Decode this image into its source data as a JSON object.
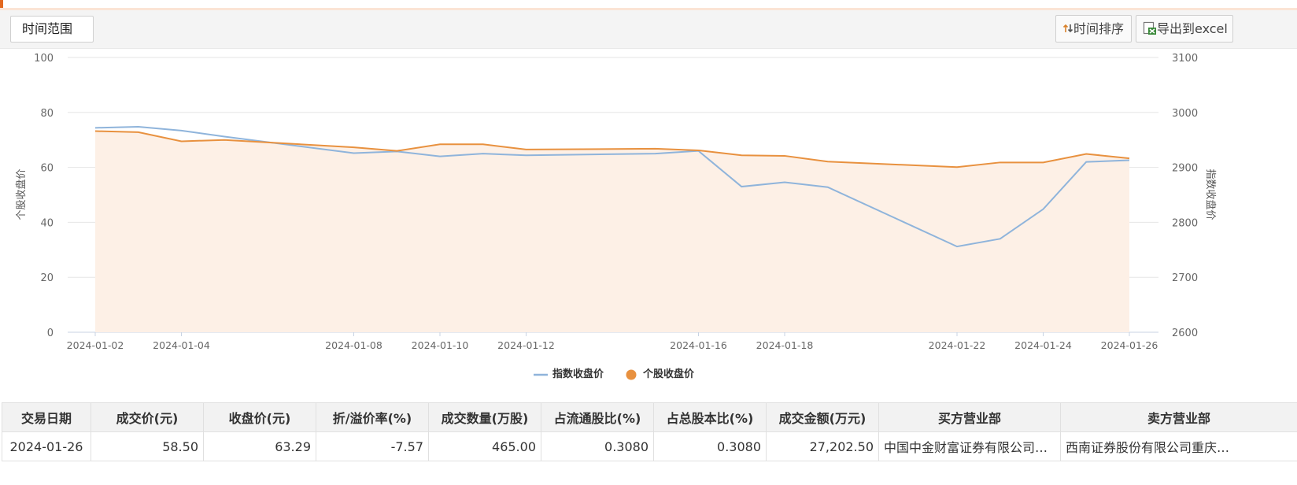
{
  "toolbar": {
    "range_label": "时间范围",
    "sort_label": "时间排序",
    "export_label": "导出到excel"
  },
  "chart_data": {
    "type": "line",
    "x": [
      "2024-01-02",
      "2024-01-03",
      "2024-01-04",
      "2024-01-05",
      "2024-01-08",
      "2024-01-09",
      "2024-01-10",
      "2024-01-11",
      "2024-01-12",
      "2024-01-15",
      "2024-01-16",
      "2024-01-17",
      "2024-01-18",
      "2024-01-19",
      "2024-01-22",
      "2024-01-23",
      "2024-01-24",
      "2024-01-25",
      "2024-01-26"
    ],
    "x_tick_labels": [
      "2024-01-02",
      "2024-01-04",
      "2024-01-08",
      "2024-01-10",
      "2024-01-12",
      "2024-01-16",
      "2024-01-18",
      "2024-01-22",
      "2024-01-24",
      "2024-01-26"
    ],
    "series": [
      {
        "name": "指数收盘价",
        "axis": "right",
        "color": "#8fb4db",
        "values": [
          2972,
          2974,
          2967,
          2956,
          2926,
          2929,
          2920,
          2925,
          2922,
          2925,
          2930,
          2865,
          2873,
          2864,
          2756,
          2770,
          2824,
          2910,
          2913
        ]
      },
      {
        "name": "个股收盘价",
        "axis": "left",
        "color": "#e8913f",
        "values": [
          73.2,
          72.8,
          69.5,
          70.0,
          67.3,
          66.0,
          68.4,
          68.4,
          66.5,
          66.8,
          66.2,
          64.4,
          64.2,
          62.1,
          60.1,
          61.8,
          61.8,
          64.9,
          63.3
        ]
      }
    ],
    "ylabel": "个股收盘价",
    "y2label": "指数收盘价",
    "ylim": [
      0,
      100
    ],
    "y2lim": [
      2600,
      3100
    ],
    "y_ticks": [
      "0",
      "20",
      "40",
      "60",
      "80",
      "100"
    ],
    "y2_ticks": [
      "2600",
      "2700",
      "2800",
      "2900",
      "3000",
      "3100"
    ],
    "legend_position": "bottom",
    "grid": true
  },
  "table": {
    "headers": [
      "交易日期",
      "成交价(元)",
      "收盘价(元)",
      "折/溢价率(%)",
      "成交数量(万股)",
      "占流通股比(%)",
      "占总股本比(%)",
      "成交金额(万元)",
      "买方营业部",
      "卖方营业部"
    ],
    "rows": [
      [
        "2024-01-26",
        "58.50",
        "63.29",
        "-7.57",
        "465.00",
        "0.3080",
        "0.3080",
        "27,202.50",
        "中国中金财富证券有限公司重…",
        "西南证券股份有限公司重庆…"
      ]
    ]
  }
}
